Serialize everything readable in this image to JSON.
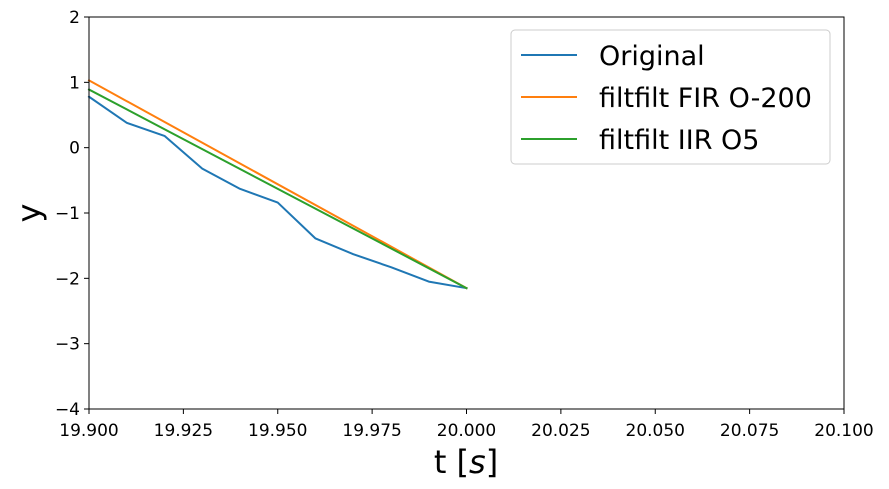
{
  "chart_data": {
    "type": "line",
    "xlabel_main": "t [",
    "xlabel_math": "s",
    "xlabel_close": "]",
    "ylabel": "y",
    "xlim": [
      19.9,
      20.1
    ],
    "ylim": [
      -4,
      2
    ],
    "xticks": [
      19.9,
      19.925,
      19.95,
      19.975,
      20.0,
      20.025,
      20.05,
      20.075,
      20.1
    ],
    "xtick_labels": [
      "19.900",
      "19.925",
      "19.950",
      "19.975",
      "20.000",
      "20.025",
      "20.050",
      "20.075",
      "20.100"
    ],
    "yticks": [
      -4,
      -3,
      -2,
      -1,
      0,
      1,
      2
    ],
    "ytick_labels": [
      "−4",
      "−3",
      "−2",
      "−1",
      "0",
      "1",
      "2"
    ],
    "grid": false,
    "legend_position": "top-right",
    "series": [
      {
        "name": "Original",
        "color": "#1f77b4",
        "x": [
          19.9,
          19.91,
          19.92,
          19.93,
          19.94,
          19.95,
          19.96,
          19.97,
          19.98,
          19.99,
          20.0
        ],
        "y": [
          0.78,
          0.38,
          0.18,
          -0.32,
          -0.63,
          -0.84,
          -1.39,
          -1.63,
          -1.83,
          -2.05,
          -2.15
        ]
      },
      {
        "name": "filtfilt FIR O-200",
        "color": "#ff7f0e",
        "x": [
          19.9,
          20.0
        ],
        "y": [
          1.03,
          -2.15
        ]
      },
      {
        "name": "filtfilt IIR O5",
        "color": "#2ca02c",
        "x": [
          19.9,
          20.0
        ],
        "y": [
          0.89,
          -2.15
        ]
      }
    ]
  }
}
